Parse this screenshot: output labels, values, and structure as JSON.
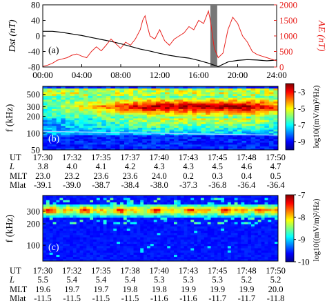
{
  "chart_data": [
    {
      "panel": "(a)",
      "type": "line",
      "ylabel_left": "Dst (nT)",
      "ylabel_right": "AE (nT)",
      "right_axis_color": "#e8201c",
      "left_axis_color": "#000000",
      "xlim": [
        0,
        24
      ],
      "ylim_left": [
        -80,
        80
      ],
      "ylim_right": [
        0,
        2000
      ],
      "x_ticks": [
        "00:00",
        "04:00",
        "08:00",
        "12:00",
        "16:00",
        "20:00",
        "24:00"
      ],
      "y_ticks_left": [
        "-80",
        "-40",
        "0",
        "40",
        "80"
      ],
      "y_ticks_right": [
        "0",
        "500",
        "1000",
        "1500",
        "2000"
      ],
      "shaded_interval_hours": [
        17.2,
        17.9
      ],
      "series": [
        {
          "color": "#000000",
          "axis": "left",
          "x": [
            0,
            1,
            2,
            3,
            4,
            5,
            6,
            7,
            8,
            9,
            10,
            11,
            12,
            13,
            14,
            15,
            16,
            17,
            18,
            19,
            20,
            21,
            22,
            23,
            24
          ],
          "y": [
            12,
            12,
            9,
            5,
            1,
            -4,
            -9,
            -14,
            -20,
            -27,
            -34,
            -39,
            -45,
            -50,
            -54,
            -57,
            -63,
            -70,
            -79,
            -67,
            -63,
            -61,
            -62,
            -64,
            -62
          ]
        },
        {
          "color": "#e8201c",
          "axis": "right",
          "x": [
            0,
            0.5,
            1,
            1.5,
            2,
            2.5,
            3,
            3.5,
            4,
            4.5,
            5,
            5.5,
            6,
            6.5,
            7,
            7.5,
            8,
            8.5,
            9,
            9.5,
            10,
            10.25,
            10.5,
            10.75,
            11,
            11.5,
            12,
            12.5,
            13,
            13.5,
            14,
            14.5,
            15,
            15.5,
            16,
            16.5,
            17,
            17.2,
            17.6,
            18,
            18.5,
            19,
            19.5,
            20,
            20.5,
            21,
            21.5,
            22,
            22.5,
            23,
            23.5,
            24
          ],
          "y": [
            20,
            60,
            120,
            220,
            260,
            300,
            380,
            420,
            350,
            300,
            500,
            650,
            520,
            700,
            900,
            750,
            600,
            800,
            700,
            900,
            1200,
            1500,
            1650,
            1300,
            1000,
            900,
            1200,
            850,
            700,
            900,
            1000,
            1100,
            1300,
            1200,
            1500,
            1400,
            1800,
            1500,
            600,
            300,
            450,
            1200,
            1600,
            1400,
            1000,
            800,
            500,
            400,
            350,
            300,
            250,
            200
          ]
        }
      ]
    },
    {
      "panel": "(b)",
      "type": "heatmap",
      "ylabel": "f (kHz)",
      "y_scale": "log",
      "ylim": [
        50,
        700
      ],
      "y_ticks": [
        "50",
        "100",
        "200",
        "300",
        "500"
      ],
      "colorbar_label": "log10((mV/m)²/Hz)",
      "colorbar_range": [
        -10,
        -2
      ],
      "colorbar_ticks": [
        "-3",
        "-5",
        "-7",
        "-9"
      ],
      "ephemeris": {
        "row_labels": [
          "UT",
          "L",
          "MLT",
          "Mlat"
        ],
        "UT": [
          "17:30",
          "17:32",
          "17:35",
          "17:37",
          "17:40",
          "17:43",
          "17:45",
          "17:48",
          "17:50"
        ],
        "L": [
          "3.8",
          "4.0",
          "4.1",
          "4.2",
          "4.3",
          "4.3",
          "4.5",
          "4.6",
          "4.7"
        ],
        "MLT": [
          "23.0",
          "23.2",
          "23.6",
          "23.6",
          "24.0",
          "0.2",
          "0.3",
          "0.4",
          "0.5"
        ],
        "Mlat": [
          "-39.1",
          "-39.0",
          "-38.7",
          "-38.4",
          "-38.0",
          "-37.3",
          "-36.8",
          "-36.4",
          "-36.4"
        ]
      }
    },
    {
      "panel": "(c)",
      "type": "heatmap",
      "ylabel": "f (kHz)",
      "y_scale": "log",
      "ylim": [
        60,
        500
      ],
      "y_ticks": [
        "100",
        "200",
        "300"
      ],
      "colorbar_label": "log10((mV/m)²/Hz)",
      "colorbar_range": [
        -10,
        -7
      ],
      "colorbar_ticks": [
        "-7",
        "-8",
        "-9",
        "-10"
      ],
      "ephemeris": {
        "row_labels": [
          "UT",
          "L",
          "MLT",
          "Mlat"
        ],
        "UT": [
          "17:30",
          "17:32",
          "17:35",
          "17:38",
          "17:40",
          "17:43",
          "17:45",
          "17:48",
          "17:50"
        ],
        "L": [
          "5.5",
          "5.4",
          "5.4",
          "5.4",
          "5.3",
          "5.3",
          "5.3",
          "5.2",
          "5.2"
        ],
        "MLT": [
          "19.6",
          "19.7",
          "19.7",
          "19.8",
          "19.8",
          "19.9",
          "19.9",
          "19.9",
          "20.0"
        ],
        "Mlat": [
          "-11.5",
          "-11.5",
          "-11.5",
          "-11.5",
          "-11.6",
          "-11.6",
          "-11.7",
          "-11.7",
          "-11.8"
        ]
      }
    }
  ]
}
